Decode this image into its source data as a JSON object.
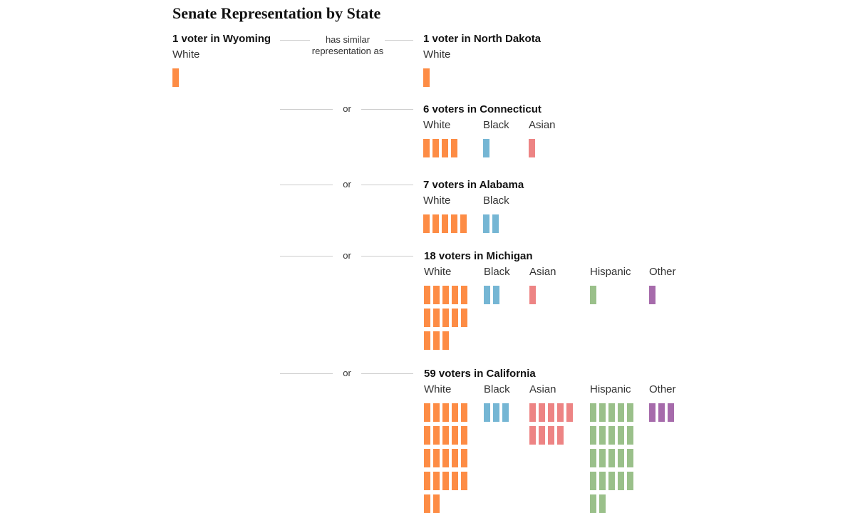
{
  "title": "Senate Representation by State",
  "colors": {
    "White": "#fd8c45",
    "Black": "#75b6d4",
    "Asian": "#ed8484",
    "Hispanic": "#9ac08a",
    "Other": "#a66bab"
  },
  "connector_first": "has similar representation as",
  "connector_or": "or",
  "chart_data": {
    "type": "table",
    "title": "Senate Representation by State",
    "reference": {
      "label": "1 voter in Wyoming",
      "state": "Wyoming",
      "voters": 1,
      "groups": [
        {
          "name": "White",
          "count": 1
        }
      ]
    },
    "comparisons": [
      {
        "label": "1 voter in North Dakota",
        "state": "North Dakota",
        "voters": 1,
        "groups": [
          {
            "name": "White",
            "count": 1
          }
        ]
      },
      {
        "label": "6 voters in Connecticut",
        "state": "Connecticut",
        "voters": 6,
        "groups": [
          {
            "name": "White",
            "count": 4
          },
          {
            "name": "Black",
            "count": 1
          },
          {
            "name": "Asian",
            "count": 1
          }
        ]
      },
      {
        "label": "7 voters in Alabama",
        "state": "Alabama",
        "voters": 7,
        "groups": [
          {
            "name": "White",
            "count": 5
          },
          {
            "name": "Black",
            "count": 2
          }
        ]
      },
      {
        "label": "18 voters in Michigan",
        "state": "Michigan",
        "voters": 18,
        "groups": [
          {
            "name": "White",
            "count": 13
          },
          {
            "name": "Black",
            "count": 2
          },
          {
            "name": "Asian",
            "count": 1
          },
          {
            "name": "Hispanic",
            "count": 1
          },
          {
            "name": "Other",
            "count": 1
          }
        ]
      },
      {
        "label": "59 voters in California",
        "state": "California",
        "voters": 59,
        "groups": [
          {
            "name": "White",
            "count": 22
          },
          {
            "name": "Black",
            "count": 3
          },
          {
            "name": "Asian",
            "count": 9
          },
          {
            "name": "Hispanic",
            "count": 22
          },
          {
            "name": "Other",
            "count": 3
          }
        ]
      }
    ]
  }
}
